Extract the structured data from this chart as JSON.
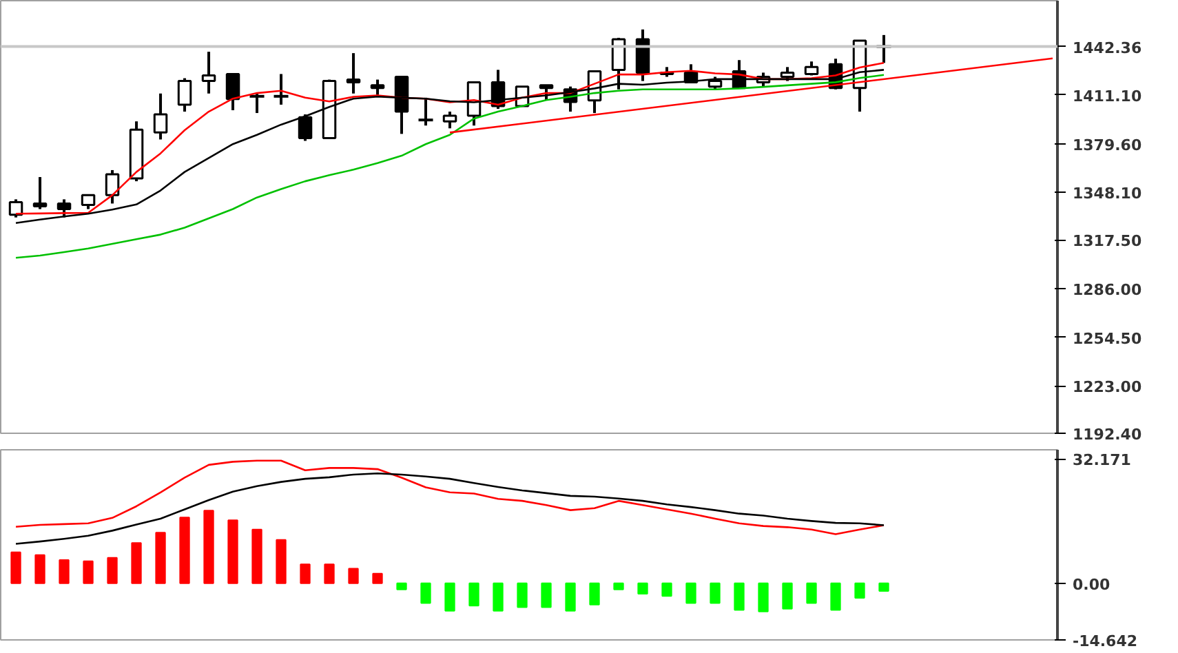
{
  "chart_data": [
    {
      "type": "candlestick",
      "categories": [
        null,
        null,
        null,
        null,
        null,
        null,
        null,
        null,
        null,
        null,
        null,
        null,
        null,
        null,
        null,
        null,
        null,
        null,
        null,
        null,
        null,
        null,
        null,
        null,
        null,
        null,
        null,
        null,
        null,
        null,
        null,
        null,
        null,
        null,
        null,
        null,
        null,
        null,
        null,
        null,
        null,
        null,
        null,
        null
      ],
      "ohlc": [
        [
          1333.7,
          1343.6,
          1331.9,
          1341.8
        ],
        [
          1340.9,
          1358.0,
          1337.3,
          1339.1
        ],
        [
          1340.9,
          1343.6,
          1331.9,
          1337.3
        ],
        [
          1340.0,
          1346.3,
          1337.3,
          1346.3
        ],
        [
          1346.3,
          1362.5,
          1340.9,
          1359.8
        ],
        [
          1357.1,
          1394.0,
          1355.3,
          1388.6
        ],
        [
          1386.8,
          1412.0,
          1382.3,
          1398.5
        ],
        [
          1404.8,
          1421.9,
          1400.3,
          1420.1
        ],
        [
          1420.1,
          1439.0,
          1412.0,
          1423.7
        ],
        [
          1424.6,
          1424.6,
          1401.2,
          1408.4
        ],
        [
          1411.1,
          1412.0,
          1399.4,
          1410.2
        ],
        [
          1411.1,
          1424.6,
          1404.8,
          1410.2
        ],
        [
          1396.7,
          1398.5,
          1381.4,
          1383.2
        ],
        [
          1383.2,
          1421.0,
          1383.2,
          1420.1
        ],
        [
          1421.0,
          1438.1,
          1412.0,
          1419.2
        ],
        [
          1417.4,
          1421.0,
          1411.1,
          1415.6
        ],
        [
          1422.8,
          1422.8,
          1385.9,
          1400.3
        ],
        [
          1395.8,
          1409.3,
          1391.3,
          1394.9
        ],
        [
          1394.0,
          1400.3,
          1389.5,
          1397.6
        ],
        [
          1397.6,
          1419.2,
          1391.3,
          1419.2
        ],
        [
          1419.2,
          1427.3,
          1402.1,
          1403.9
        ],
        [
          1403.9,
          1416.5,
          1403.9,
          1416.5
        ],
        [
          1417.4,
          1417.4,
          1407.5,
          1415.6
        ],
        [
          1414.7,
          1416.5,
          1400.3,
          1406.6
        ],
        [
          1407.5,
          1426.4,
          1399.4,
          1426.4
        ],
        [
          1427.3,
          1448.0,
          1414.7,
          1447.1
        ],
        [
          1447.1,
          1453.4,
          1420.1,
          1425.5
        ],
        [
          1425.5,
          1429.1,
          1422.8,
          1424.6
        ],
        [
          1425.5,
          1430.9,
          1419.2,
          1419.2
        ],
        [
          1416.5,
          1422.8,
          1414.7,
          1420.1
        ],
        [
          1426.4,
          1433.6,
          1415.6,
          1415.6
        ],
        [
          1419.2,
          1425.5,
          1416.5,
          1422.8
        ],
        [
          1422.8,
          1429.1,
          1420.1,
          1425.5
        ],
        [
          1424.6,
          1432.7,
          1423.7,
          1429.1
        ],
        [
          1430.9,
          1434.5,
          1414.7,
          1415.6
        ],
        [
          1415.6,
          1446.2,
          1400.3,
          1446.2
        ],
        [
          1441.5,
          1449.8,
          1431.8,
          1442.36
        ],
        null,
        null,
        null,
        null,
        null,
        null,
        null
      ],
      "series": [
        {
          "type": "line",
          "color": "#ff0000",
          "values": [
            1334.3,
            1334.5,
            1334.7,
            1334.9,
            1346.3,
            1361.3,
            1373.3,
            1388.3,
            1400.3,
            1408.7,
            1412.3,
            1413.8,
            1409.3,
            1406.9,
            1409.9,
            1410.8,
            1409.3,
            1408.7,
            1406.3,
            1407.8,
            1404.8,
            1409.3,
            1412.3,
            1412.3,
            1418.3,
            1424.3,
            1424.3,
            1425.8,
            1426.7,
            1425.0,
            1424.3,
            1421.3,
            1421.3,
            1421.9,
            1423.7,
            1428.8,
            1431.8,
            null,
            null,
            null,
            null,
            null,
            null,
            null
          ]
        },
        {
          "type": "line",
          "color": "#000000",
          "values": [
            1328.3,
            1330.5,
            1332.5,
            1334.3,
            1337.0,
            1340.3,
            1349.3,
            1361.3,
            1370.3,
            1379.3,
            1385.3,
            1391.9,
            1397.3,
            1403.3,
            1408.7,
            1410.0,
            1409.3,
            1408.7,
            1407.0,
            1406.3,
            1407.8,
            1409.3,
            1410.8,
            1412.9,
            1415.3,
            1418.3,
            1417.7,
            1419.0,
            1419.8,
            1421.3,
            1421.3,
            1421.3,
            1421.3,
            1421.3,
            1421.3,
            1425.8,
            1427.3,
            null,
            null,
            null,
            null,
            null,
            null,
            null
          ]
        },
        {
          "type": "line",
          "color": "#00c000",
          "values": [
            1305.8,
            1307.3,
            1309.5,
            1311.8,
            1314.8,
            1317.8,
            1320.8,
            1325.3,
            1331.3,
            1337.3,
            1344.8,
            1350.2,
            1355.3,
            1359.2,
            1362.8,
            1367.0,
            1371.8,
            1379.3,
            1385.3,
            1395.8,
            1400.3,
            1403.9,
            1407.8,
            1409.9,
            1412.3,
            1413.8,
            1414.7,
            1414.7,
            1414.7,
            1414.7,
            1415.3,
            1416.3,
            1417.3,
            1418.3,
            1419.3,
            1422.0,
            1424.0,
            null,
            null,
            null,
            null,
            null,
            null,
            null
          ]
        },
        {
          "type": "line",
          "color": "#ff0000",
          "values": [
            null,
            null,
            null,
            null,
            null,
            null,
            null,
            null,
            null,
            null,
            null,
            null,
            null,
            null,
            null,
            null,
            null,
            null,
            1386.8,
            null,
            null,
            null,
            null,
            null,
            null,
            null,
            null,
            null,
            null,
            null,
            null,
            null,
            null,
            null,
            null,
            null,
            null,
            null,
            null,
            null,
            null,
            null,
            null,
            1434.7
          ]
        }
      ],
      "ylim": [
        1192.4,
        1472
      ],
      "yticks": [
        {
          "value": 1192.4,
          "label": "1192.40"
        },
        {
          "value": 1223,
          "label": "1223.00"
        },
        {
          "value": 1254.5,
          "label": "1254.50"
        },
        {
          "value": 1286,
          "label": "1286.00"
        },
        {
          "value": 1317.5,
          "label": "1317.50"
        },
        {
          "value": 1348.1,
          "label": "1348.10"
        },
        {
          "value": 1379.6,
          "label": "1379.60"
        },
        {
          "value": 1411.1,
          "label": "1411.10"
        },
        {
          "value": 1442.36,
          "label": "1442.36"
        }
      ],
      "ref_lines": [
        {
          "axis": "y",
          "value": 1442.36,
          "color": "#c8c8c8"
        }
      ],
      "tick_labels": "y",
      "grid": false
    },
    {
      "type": "bar",
      "categories": [
        null,
        null,
        null,
        null,
        null,
        null,
        null,
        null,
        null,
        null,
        null,
        null,
        null,
        null,
        null,
        null,
        null,
        null,
        null,
        null,
        null,
        null,
        null,
        null,
        null,
        null,
        null,
        null,
        null,
        null,
        null,
        null,
        null,
        null,
        null,
        null,
        null,
        null,
        null,
        null,
        null,
        null,
        null,
        null
      ],
      "series": [
        {
          "type": "bar",
          "colors": [
            "#ff0000",
            "#ff0000",
            "#ff0000",
            "#ff0000",
            "#ff0000",
            "#ff0000",
            "#ff0000",
            "#ff0000",
            "#ff0000",
            "#ff0000",
            "#ff0000",
            "#ff0000",
            "#ff0000",
            "#ff0000",
            "#ff0000",
            "#ff0000",
            "#00ff00",
            "#00ff00",
            "#00ff00",
            "#00ff00",
            "#00ff00",
            "#00ff00",
            "#00ff00",
            "#00ff00",
            "#00ff00",
            "#00ff00",
            "#00ff00",
            "#00ff00",
            "#00ff00",
            "#00ff00",
            "#00ff00",
            "#00ff00",
            "#00ff00",
            "#00ff00",
            "#00ff00",
            "#00ff00",
            "#00ff00",
            "#00ff00",
            "#00ff00",
            "#00ff00",
            "#00ff00",
            "#00ff00",
            "#00ff00",
            "#00ff00"
          ],
          "values": [
            8.0,
            7.3,
            6.0,
            5.7,
            6.6,
            10.4,
            13.1,
            17.0,
            18.8,
            16.3,
            13.9,
            11.2,
            4.9,
            4.9,
            3.8,
            2.5,
            -1.6,
            -5.1,
            -7.1,
            -5.8,
            -7.1,
            -6.2,
            -6.2,
            -7.1,
            -5.5,
            -1.6,
            -2.7,
            -3.3,
            -5.1,
            -5.1,
            -6.9,
            -7.3,
            -6.6,
            -5.1,
            -6.9,
            -3.8,
            -2.0,
            null,
            null,
            null,
            null,
            null,
            null,
            null
          ]
        },
        {
          "type": "line",
          "color": "#ff0000",
          "values": [
            14.6,
            15.1,
            15.3,
            15.5,
            16.9,
            19.9,
            23.5,
            27.3,
            30.6,
            31.4,
            31.7,
            31.7,
            29.2,
            29.8,
            29.8,
            29.5,
            27.3,
            24.8,
            23.5,
            23.2,
            21.8,
            21.3,
            20.2,
            18.9,
            19.4,
            21.3,
            20.2,
            19.1,
            18.0,
            16.7,
            15.5,
            14.8,
            14.5,
            13.9,
            12.7,
            13.9,
            15.0,
            null,
            null,
            null,
            null,
            null,
            null,
            null
          ]
        },
        {
          "type": "line",
          "color": "#000000",
          "values": [
            10.2,
            10.8,
            11.5,
            12.3,
            13.6,
            15.2,
            16.7,
            19.1,
            21.5,
            23.7,
            25.1,
            26.2,
            27.0,
            27.4,
            28.1,
            28.4,
            28.1,
            27.6,
            27.0,
            25.9,
            24.9,
            24.0,
            23.3,
            22.6,
            22.4,
            21.9,
            21.3,
            20.4,
            19.7,
            18.9,
            18.0,
            17.5,
            16.7,
            16.1,
            15.6,
            15.5,
            15.0,
            null,
            null,
            null,
            null,
            null,
            null,
            null
          ]
        }
      ],
      "ylim": [
        -14.642,
        34.5
      ],
      "yticks": [
        {
          "value": 32.171,
          "label": "32.171"
        },
        {
          "value": 0,
          "label": "0.00"
        },
        {
          "value": -14.642,
          "label": "-14.642"
        }
      ],
      "tick_labels": "y",
      "grid": false
    }
  ]
}
